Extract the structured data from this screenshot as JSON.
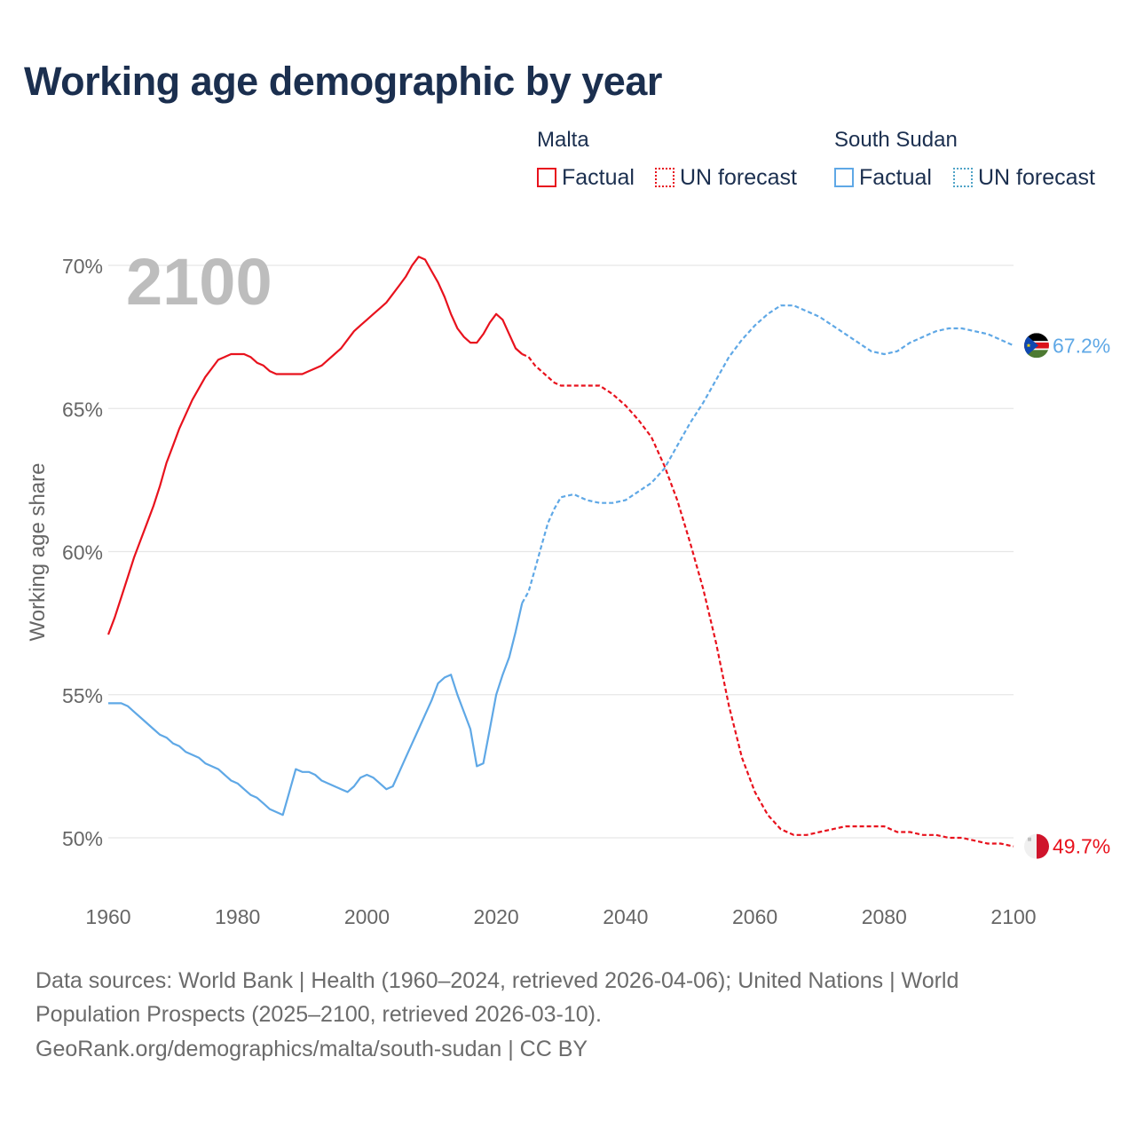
{
  "title": "Working age demographic by year",
  "legend": {
    "groups": [
      {
        "name": "Malta",
        "factual": "Factual",
        "forecast": "UN forecast",
        "color": "#e8121d"
      },
      {
        "name": "South Sudan",
        "factual": "Factual",
        "forecast": "UN forecast",
        "color": "#5fa8e6"
      }
    ]
  },
  "year_watermark": "2100",
  "end_labels": {
    "malta": "49.7%",
    "south_sudan": "67.2%"
  },
  "colors": {
    "malta": "#e8121d",
    "south_sudan": "#5fa8e6",
    "grid": "#e6e6e6",
    "axis_text": "#666666",
    "watermark": "#bdbdbd"
  },
  "icons": {
    "malta_marker": "malta-flag-icon",
    "south_sudan_marker": "south-sudan-flag-icon"
  },
  "sources": {
    "line1": "Data sources: World Bank | Health (1960–2024, retrieved 2026-04-06); United Nations | World",
    "line2": "Population Prospects (2025–2100, retrieved 2026-03-10).",
    "line3": "GeoRank.org/demographics/malta/south-sudan | CC BY"
  },
  "chart_data": {
    "type": "line",
    "title": "Working age demographic by year",
    "xlabel": "",
    "ylabel": "Working age share",
    "xlim": [
      1960,
      2100
    ],
    "ylim": [
      50,
      70
    ],
    "x_ticks": [
      1960,
      1980,
      2000,
      2020,
      2040,
      2060,
      2080,
      2100
    ],
    "x_tick_labels": [
      "1960",
      "1980",
      "2000",
      "2020",
      "2040",
      "2060",
      "2080",
      "2100"
    ],
    "y_ticks": [
      50,
      55,
      60,
      65,
      70
    ],
    "y_tick_labels": [
      "50%",
      "55%",
      "60%",
      "65%",
      "70%"
    ],
    "grid": true,
    "legend_position": "top-right",
    "series": [
      {
        "name": "Malta",
        "factual": [
          [
            1960,
            57.1
          ],
          [
            1961,
            57.7
          ],
          [
            1962,
            58.4
          ],
          [
            1963,
            59.1
          ],
          [
            1964,
            59.8
          ],
          [
            1965,
            60.4
          ],
          [
            1966,
            61.0
          ],
          [
            1967,
            61.6
          ],
          [
            1968,
            62.3
          ],
          [
            1969,
            63.1
          ],
          [
            1970,
            63.7
          ],
          [
            1971,
            64.3
          ],
          [
            1972,
            64.8
          ],
          [
            1973,
            65.3
          ],
          [
            1974,
            65.7
          ],
          [
            1975,
            66.1
          ],
          [
            1976,
            66.4
          ],
          [
            1977,
            66.7
          ],
          [
            1978,
            66.8
          ],
          [
            1979,
            66.9
          ],
          [
            1980,
            66.9
          ],
          [
            1981,
            66.9
          ],
          [
            1982,
            66.8
          ],
          [
            1983,
            66.6
          ],
          [
            1984,
            66.5
          ],
          [
            1985,
            66.3
          ],
          [
            1986,
            66.2
          ],
          [
            1987,
            66.2
          ],
          [
            1988,
            66.2
          ],
          [
            1989,
            66.2
          ],
          [
            1990,
            66.2
          ],
          [
            1991,
            66.3
          ],
          [
            1992,
            66.4
          ],
          [
            1993,
            66.5
          ],
          [
            1994,
            66.7
          ],
          [
            1995,
            66.9
          ],
          [
            1996,
            67.1
          ],
          [
            1997,
            67.4
          ],
          [
            1998,
            67.7
          ],
          [
            1999,
            67.9
          ],
          [
            2000,
            68.1
          ],
          [
            2001,
            68.3
          ],
          [
            2002,
            68.5
          ],
          [
            2003,
            68.7
          ],
          [
            2004,
            69.0
          ],
          [
            2005,
            69.3
          ],
          [
            2006,
            69.6
          ],
          [
            2007,
            70.0
          ],
          [
            2008,
            70.3
          ],
          [
            2009,
            70.2
          ],
          [
            2010,
            69.8
          ],
          [
            2011,
            69.4
          ],
          [
            2012,
            68.9
          ],
          [
            2013,
            68.3
          ],
          [
            2014,
            67.8
          ],
          [
            2015,
            67.5
          ],
          [
            2016,
            67.3
          ],
          [
            2017,
            67.3
          ],
          [
            2018,
            67.6
          ],
          [
            2019,
            68.0
          ],
          [
            2020,
            68.3
          ],
          [
            2021,
            68.1
          ],
          [
            2022,
            67.6
          ],
          [
            2023,
            67.1
          ],
          [
            2024,
            66.9
          ]
        ],
        "forecast": [
          [
            2024,
            66.9
          ],
          [
            2025,
            66.8
          ],
          [
            2026,
            66.5
          ],
          [
            2027,
            66.3
          ],
          [
            2028,
            66.1
          ],
          [
            2029,
            65.9
          ],
          [
            2030,
            65.8
          ],
          [
            2032,
            65.8
          ],
          [
            2034,
            65.8
          ],
          [
            2036,
            65.8
          ],
          [
            2038,
            65.5
          ],
          [
            2040,
            65.1
          ],
          [
            2042,
            64.6
          ],
          [
            2044,
            64.0
          ],
          [
            2046,
            63.0
          ],
          [
            2048,
            61.8
          ],
          [
            2050,
            60.3
          ],
          [
            2052,
            58.7
          ],
          [
            2054,
            56.8
          ],
          [
            2056,
            54.6
          ],
          [
            2058,
            52.8
          ],
          [
            2060,
            51.6
          ],
          [
            2062,
            50.8
          ],
          [
            2064,
            50.3
          ],
          [
            2066,
            50.1
          ],
          [
            2068,
            50.1
          ],
          [
            2070,
            50.2
          ],
          [
            2072,
            50.3
          ],
          [
            2074,
            50.4
          ],
          [
            2076,
            50.4
          ],
          [
            2078,
            50.4
          ],
          [
            2080,
            50.4
          ],
          [
            2082,
            50.2
          ],
          [
            2084,
            50.2
          ],
          [
            2086,
            50.1
          ],
          [
            2088,
            50.1
          ],
          [
            2090,
            50.0
          ],
          [
            2092,
            50.0
          ],
          [
            2094,
            49.9
          ],
          [
            2096,
            49.8
          ],
          [
            2098,
            49.8
          ],
          [
            2100,
            49.7
          ]
        ]
      },
      {
        "name": "South Sudan",
        "factual": [
          [
            1960,
            54.7
          ],
          [
            1961,
            54.7
          ],
          [
            1962,
            54.7
          ],
          [
            1963,
            54.6
          ],
          [
            1964,
            54.4
          ],
          [
            1965,
            54.2
          ],
          [
            1966,
            54.0
          ],
          [
            1967,
            53.8
          ],
          [
            1968,
            53.6
          ],
          [
            1969,
            53.5
          ],
          [
            1970,
            53.3
          ],
          [
            1971,
            53.2
          ],
          [
            1972,
            53.0
          ],
          [
            1973,
            52.9
          ],
          [
            1974,
            52.8
          ],
          [
            1975,
            52.6
          ],
          [
            1976,
            52.5
          ],
          [
            1977,
            52.4
          ],
          [
            1978,
            52.2
          ],
          [
            1979,
            52.0
          ],
          [
            1980,
            51.9
          ],
          [
            1981,
            51.7
          ],
          [
            1982,
            51.5
          ],
          [
            1983,
            51.4
          ],
          [
            1984,
            51.2
          ],
          [
            1985,
            51.0
          ],
          [
            1986,
            50.9
          ],
          [
            1987,
            50.8
          ],
          [
            1988,
            51.6
          ],
          [
            1989,
            52.4
          ],
          [
            1990,
            52.3
          ],
          [
            1991,
            52.3
          ],
          [
            1992,
            52.2
          ],
          [
            1993,
            52.0
          ],
          [
            1994,
            51.9
          ],
          [
            1995,
            51.8
          ],
          [
            1996,
            51.7
          ],
          [
            1997,
            51.6
          ],
          [
            1998,
            51.8
          ],
          [
            1999,
            52.1
          ],
          [
            2000,
            52.2
          ],
          [
            2001,
            52.1
          ],
          [
            2002,
            51.9
          ],
          [
            2003,
            51.7
          ],
          [
            2004,
            51.8
          ],
          [
            2005,
            52.3
          ],
          [
            2006,
            52.8
          ],
          [
            2007,
            53.3
          ],
          [
            2008,
            53.8
          ],
          [
            2009,
            54.3
          ],
          [
            2010,
            54.8
          ],
          [
            2011,
            55.4
          ],
          [
            2012,
            55.6
          ],
          [
            2013,
            55.7
          ],
          [
            2014,
            55.0
          ],
          [
            2015,
            54.4
          ],
          [
            2016,
            53.8
          ],
          [
            2017,
            52.5
          ],
          [
            2018,
            52.6
          ],
          [
            2019,
            53.8
          ],
          [
            2020,
            55.0
          ],
          [
            2021,
            55.7
          ],
          [
            2022,
            56.3
          ],
          [
            2023,
            57.2
          ],
          [
            2024,
            58.2
          ]
        ],
        "forecast": [
          [
            2024,
            58.2
          ],
          [
            2025,
            58.6
          ],
          [
            2026,
            59.4
          ],
          [
            2027,
            60.2
          ],
          [
            2028,
            61.0
          ],
          [
            2029,
            61.5
          ],
          [
            2030,
            61.9
          ],
          [
            2032,
            62.0
          ],
          [
            2034,
            61.8
          ],
          [
            2036,
            61.7
          ],
          [
            2038,
            61.7
          ],
          [
            2040,
            61.8
          ],
          [
            2042,
            62.1
          ],
          [
            2044,
            62.4
          ],
          [
            2046,
            62.9
          ],
          [
            2048,
            63.7
          ],
          [
            2050,
            64.5
          ],
          [
            2052,
            65.2
          ],
          [
            2054,
            66.0
          ],
          [
            2056,
            66.8
          ],
          [
            2058,
            67.4
          ],
          [
            2060,
            67.9
          ],
          [
            2062,
            68.3
          ],
          [
            2064,
            68.6
          ],
          [
            2066,
            68.6
          ],
          [
            2068,
            68.4
          ],
          [
            2070,
            68.2
          ],
          [
            2072,
            67.9
          ],
          [
            2074,
            67.6
          ],
          [
            2076,
            67.3
          ],
          [
            2078,
            67.0
          ],
          [
            2080,
            66.9
          ],
          [
            2082,
            67.0
          ],
          [
            2084,
            67.3
          ],
          [
            2086,
            67.5
          ],
          [
            2088,
            67.7
          ],
          [
            2090,
            67.8
          ],
          [
            2092,
            67.8
          ],
          [
            2094,
            67.7
          ],
          [
            2096,
            67.6
          ],
          [
            2098,
            67.4
          ],
          [
            2100,
            67.2
          ]
        ]
      }
    ]
  }
}
